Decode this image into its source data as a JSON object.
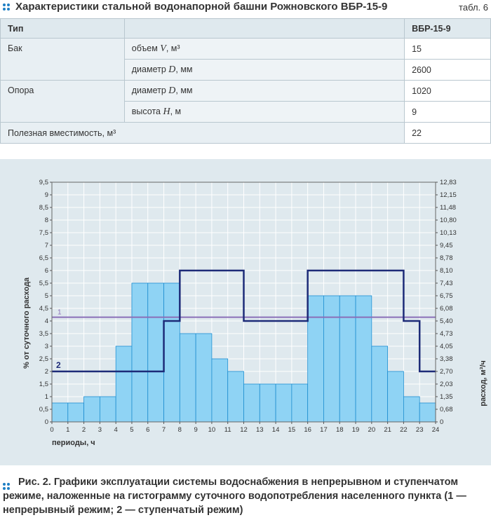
{
  "header": {
    "title": "Характеристики стальной водонапорной башни Рожновского ВБР-15-9",
    "tab": "табл. 6"
  },
  "table": {
    "col1": "Тип",
    "col2": "",
    "col3": "ВБР-15-9",
    "rows": [
      {
        "group": "Бак",
        "param_text": "объем ",
        "param_var": "V",
        "param_unit": ", м³",
        "value": "15"
      },
      {
        "group": "",
        "param_text": "диаметр ",
        "param_var": "D",
        "param_unit": ", мм",
        "value": "2600"
      },
      {
        "group": "Опора",
        "param_text": "диаметр ",
        "param_var": "D",
        "param_unit": ", мм",
        "value": "1020"
      },
      {
        "group": "",
        "param_text": "высота ",
        "param_var": "H",
        "param_unit": ", м",
        "value": "9"
      }
    ],
    "total": {
      "label": "Полезная вместимость, м³",
      "value": "22"
    }
  },
  "chart_data": {
    "type": "bar",
    "xlabel": "периоды, ч",
    "ylabel": "% от суточного расхода",
    "y2label": "расход, м³/ч",
    "xlim": [
      0,
      24
    ],
    "ylim": [
      0,
      9.5
    ],
    "xticks": [
      "0",
      "1",
      "2",
      "3",
      "4",
      "5",
      "6",
      "7",
      "8",
      "9",
      "10",
      "11",
      "12",
      "13",
      "14",
      "15",
      "16",
      "17",
      "18",
      "19",
      "20",
      "21",
      "22",
      "23",
      "24"
    ],
    "yticks": [
      "0",
      "0,5",
      "1",
      "1,5",
      "2",
      "2,5",
      "3",
      "3,5",
      "4",
      "4,5",
      "5",
      "5,5",
      "6",
      "6,5",
      "7",
      "7,5",
      "8",
      "8,5",
      "9",
      "9,5"
    ],
    "y2ticks": [
      "0",
      "0,68",
      "1,35",
      "2,03",
      "2,70",
      "3,38",
      "4,05",
      "4,73",
      "5,40",
      "6,08",
      "6,75",
      "7,43",
      "8,10",
      "8,78",
      "9,45",
      "10,13",
      "10,80",
      "11,48",
      "12,15",
      "12,83"
    ],
    "bars": [
      0.75,
      0.75,
      1.0,
      1.0,
      3.0,
      5.5,
      5.5,
      5.5,
      3.5,
      3.5,
      2.5,
      2.0,
      1.5,
      1.5,
      1.5,
      1.5,
      5.0,
      5.0,
      5.0,
      5.0,
      3.0,
      2.0,
      1.0,
      0.75
    ],
    "series": [
      {
        "name": "1",
        "type": "line",
        "value": 4.15
      },
      {
        "name": "2",
        "type": "step",
        "values": [
          2,
          2,
          2,
          2,
          2,
          2,
          2,
          4,
          6,
          6,
          6,
          6,
          4,
          4,
          4,
          4,
          6,
          6,
          6,
          6,
          6,
          6,
          4,
          2
        ]
      }
    ],
    "grid": true,
    "colors": {
      "bar": "#8fd3f4",
      "bar_stroke": "#1f8ed0",
      "line1": "#8a6fb8",
      "line2": "#1d2b78",
      "grid": "#ffffff",
      "plot_bg": "#dfe9ee"
    }
  },
  "caption": {
    "fig": "Рис. 2.",
    "text_1": " Графики эксплуатации системы водоснабжения в непрерывном и ступенчатом режиме, наложенные на гистограмму суточного водопотребления населенного пункта (",
    "n1": "1",
    "text_2": " — непрерывный режим; ",
    "n2": "2",
    "text_3": " — ступенчатый режим)"
  }
}
